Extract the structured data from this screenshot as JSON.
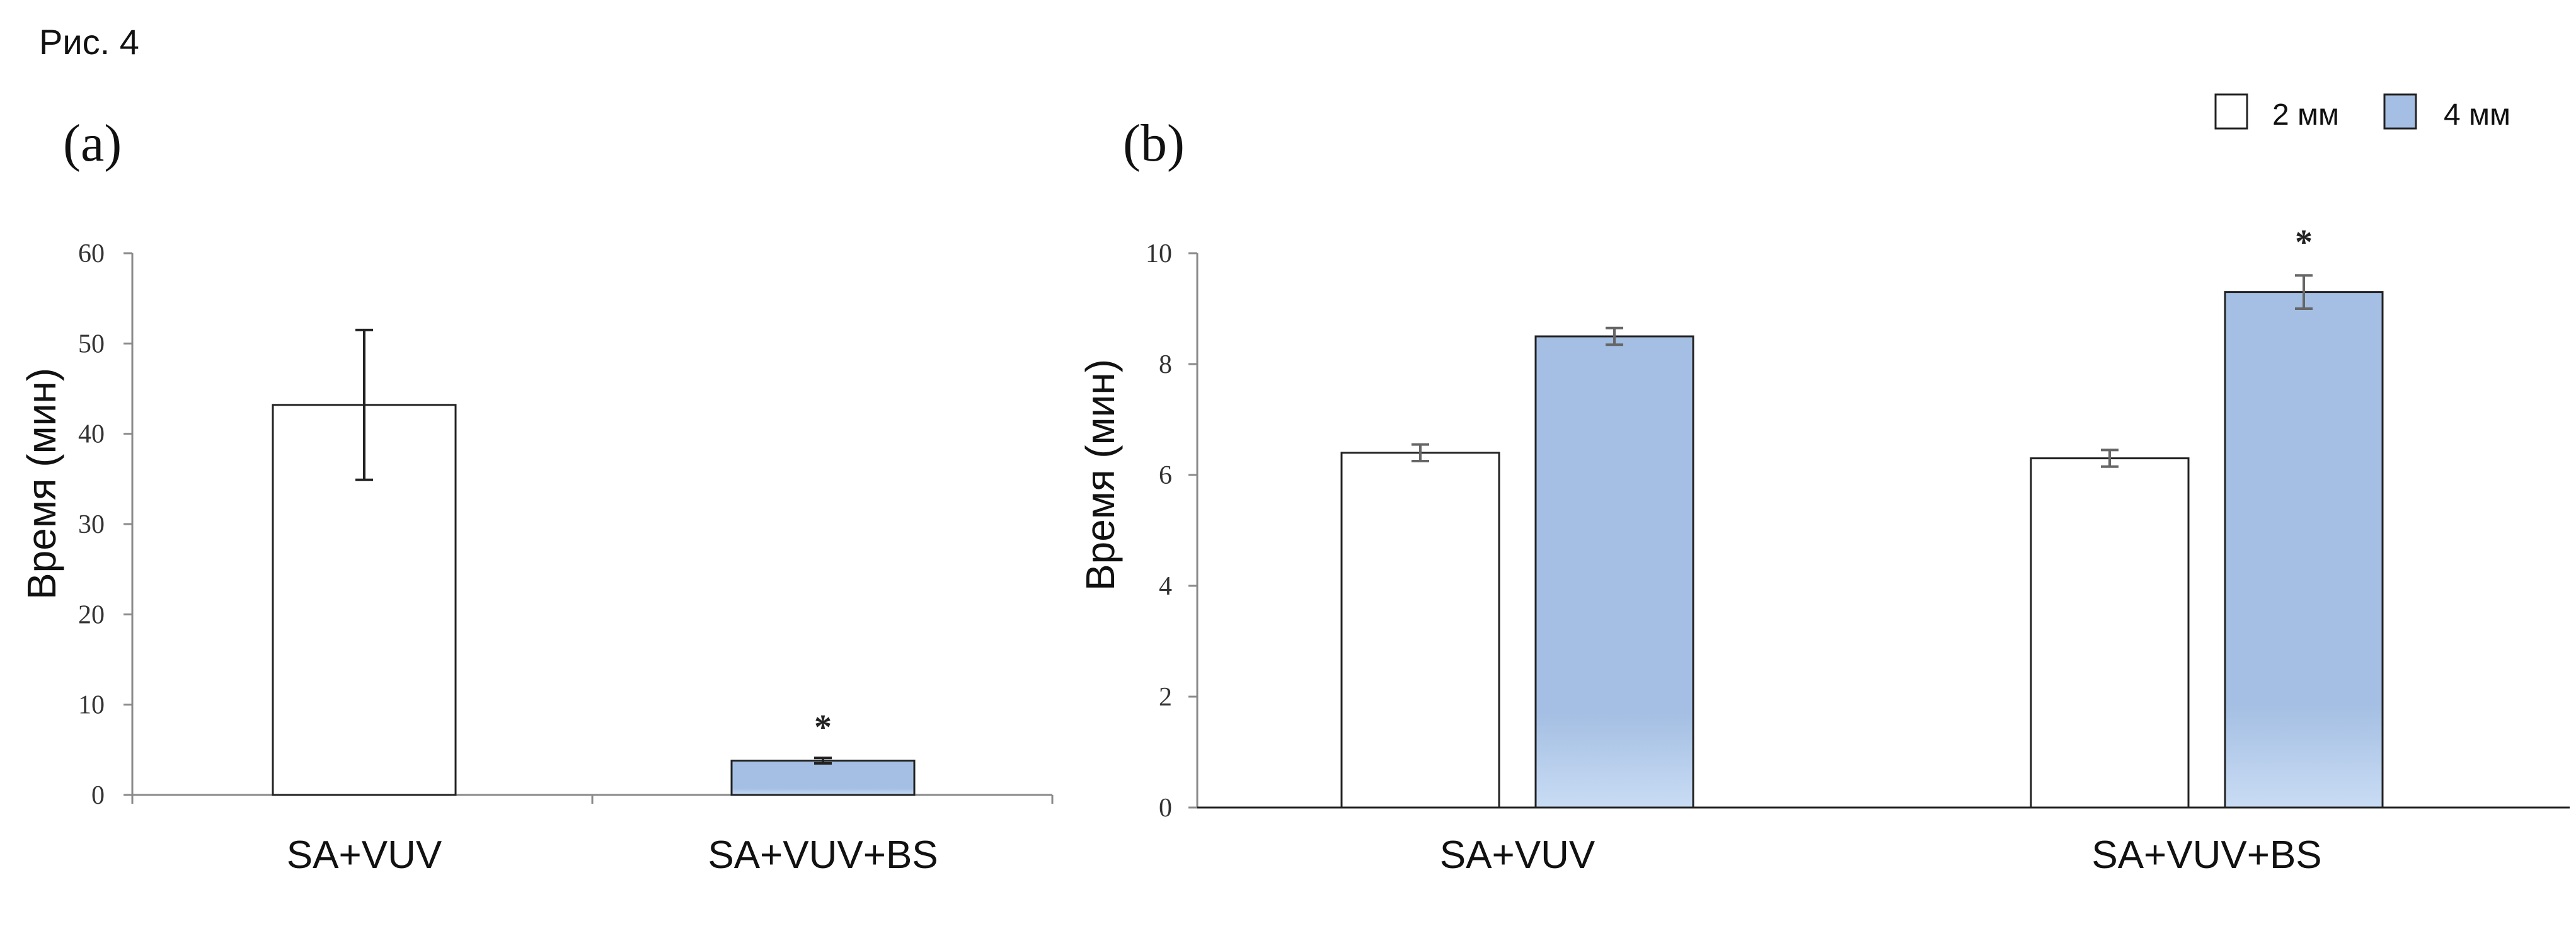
{
  "figure_label": "Рис. 4",
  "colors": {
    "bar_2mm": "#ffffff",
    "bar_4mm": "#a4bfe3",
    "bar_4mm_light": "#c9dcf4",
    "axis": "#8a8a8a",
    "bar_stroke": "#222222"
  },
  "chart_data": [
    {
      "type": "bar",
      "panel_label": "(a)",
      "categories": [
        "SA+VUV",
        "SA+VUV+BS"
      ],
      "series": [
        {
          "values": [
            43.2,
            3.8
          ],
          "errors": [
            8.3,
            0.3
          ],
          "colors": [
            "#ffffff",
            "#a4bfe3"
          ]
        }
      ],
      "annotations": [
        {
          "category": "SA+VUV+BS",
          "text": "*"
        }
      ],
      "xlabel": "",
      "ylabel": "Время (мин)",
      "ylim": [
        0,
        60
      ],
      "yticks": [
        0,
        10,
        20,
        30,
        40,
        50,
        60
      ],
      "grid": false
    },
    {
      "type": "bar",
      "panel_label": "(b)",
      "categories": [
        "SA+VUV",
        "SA+VUV+BS"
      ],
      "series": [
        {
          "name": "2 мм",
          "values": [
            6.4,
            6.3
          ],
          "errors": [
            0.15,
            0.15
          ],
          "color": "#ffffff"
        },
        {
          "name": "4 мм",
          "values": [
            8.5,
            9.3
          ],
          "errors": [
            0.15,
            0.3
          ],
          "color": "#a4bfe3"
        }
      ],
      "annotations": [
        {
          "category": "SA+VUV+BS",
          "series": "4 мм",
          "text": "*"
        }
      ],
      "xlabel": "",
      "ylabel": "Время (мин)",
      "ylim": [
        0,
        10
      ],
      "yticks": [
        0,
        2,
        4,
        6,
        8,
        10
      ],
      "legend": "top-right",
      "grid": false
    }
  ]
}
